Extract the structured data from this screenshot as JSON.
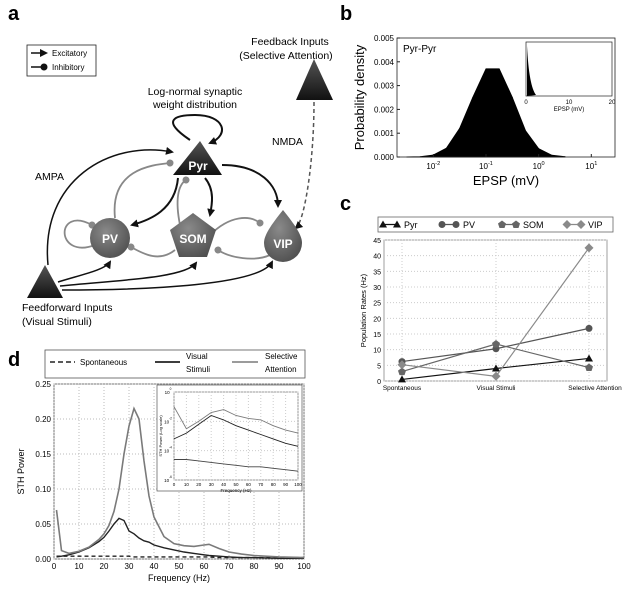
{
  "panels": {
    "a": "a",
    "b": "b",
    "c": "c",
    "d": "d"
  },
  "diagram": {
    "legend": {
      "excitatory": "Excitatory",
      "inhibitory": "Inhibitory"
    },
    "nodes": {
      "pyr": "Pyr",
      "pv": "PV",
      "som": "SOM",
      "vip": "VIP"
    },
    "feedback_line1": "Feedback Inputs",
    "feedback_line2": "(Selective Attention)",
    "feedforward_line1": "Feedforward Inputs",
    "feedforward_line2": "(Visual Stimuli)",
    "lognormal_line1": "Log-normal synaptic",
    "lognormal_line2": "weight distribution",
    "ampa": "AMPA",
    "nmda": "NMDA",
    "colors": {
      "excitatory": "#111111",
      "inhibitory": "#8a8a8a",
      "node": "#6a6a6a"
    }
  },
  "chart_data": [
    {
      "id": "b",
      "type": "histogram",
      "title": "Pyr-Pyr",
      "xlabel": "EPSP (mV)",
      "ylabel": "Probability density",
      "xscale": "log",
      "xticks": [
        "10^-2",
        "10^-1",
        "10^0",
        "10^1"
      ],
      "yticks": [
        "0.000",
        "0.001",
        "0.002",
        "0.003",
        "0.004",
        "0.005"
      ],
      "ylim": [
        0,
        0.005
      ],
      "log10_x": [
        -2.5,
        -2.25,
        -2.0,
        -1.75,
        -1.5,
        -1.25,
        -1.0,
        -0.75,
        -0.5,
        -0.25,
        0.0,
        0.25,
        0.5
      ],
      "density": [
        0.0,
        1e-05,
        8e-05,
        0.00037,
        0.0012,
        0.0025,
        0.0037,
        0.0037,
        0.0025,
        0.0011,
        0.00035,
        7e-05,
        1e-05
      ],
      "inset": {
        "xlabel": "EPSP (mV)",
        "xticks": [
          "0",
          "10",
          "20"
        ],
        "xlim": [
          0,
          20
        ]
      }
    },
    {
      "id": "c",
      "type": "line",
      "ylabel": "Population Rates (Hz)",
      "categories": [
        "Spontaneous",
        "Visual Stimuli",
        "Selective Attention"
      ],
      "yticks": [
        "0",
        "5",
        "10",
        "15",
        "20",
        "25",
        "30",
        "35",
        "40",
        "45"
      ],
      "ylim": [
        0,
        45
      ],
      "grid": true,
      "legend_position": "top",
      "series": [
        {
          "name": "Pyr",
          "marker": "triangle",
          "color": "#111111",
          "values": [
            0.5,
            4.0,
            7.2
          ]
        },
        {
          "name": "PV",
          "marker": "circle",
          "color": "#555555",
          "values": [
            6.2,
            10.3,
            16.8
          ]
        },
        {
          "name": "SOM",
          "marker": "pentagon",
          "color": "#666666",
          "values": [
            3.0,
            11.8,
            4.3
          ]
        },
        {
          "name": "VIP",
          "marker": "diamond",
          "color": "#8a8a8a",
          "values": [
            5.2,
            1.5,
            42.5
          ]
        }
      ]
    },
    {
      "id": "d",
      "type": "line",
      "xlabel": "Frequency (Hz)",
      "ylabel": "STH Power",
      "xlim": [
        0,
        100
      ],
      "ylim": [
        0,
        0.25
      ],
      "xticks": [
        "0",
        "10",
        "20",
        "30",
        "40",
        "50",
        "60",
        "70",
        "80",
        "90",
        "100"
      ],
      "yticks": [
        "0.00",
        "0.05",
        "0.10",
        "0.15",
        "0.20",
        "0.25"
      ],
      "grid": true,
      "legend_position": "top",
      "x": [
        1,
        3,
        6,
        10,
        14,
        18,
        20,
        22,
        24,
        26,
        28,
        30,
        32,
        34,
        36,
        38,
        40,
        44,
        48,
        52,
        56,
        60,
        62,
        66,
        70,
        75,
        80,
        90,
        100
      ],
      "series": [
        {
          "name": "Spontaneous",
          "style": "dashed",
          "color": "#222222",
          "values": [
            0.004,
            0.004,
            0.004,
            0.004,
            0.004,
            0.004,
            0.004,
            0.004,
            0.004,
            0.004,
            0.004,
            0.004,
            0.003,
            0.003,
            0.003,
            0.003,
            0.003,
            0.003,
            0.003,
            0.003,
            0.003,
            0.003,
            0.003,
            0.002,
            0.002,
            0.002,
            0.002,
            0.002,
            0.002
          ]
        },
        {
          "name": "Visual Stimuli",
          "style": "solid",
          "color": "#222222",
          "values": [
            0.003,
            0.004,
            0.006,
            0.01,
            0.016,
            0.025,
            0.031,
            0.04,
            0.05,
            0.058,
            0.055,
            0.04,
            0.036,
            0.03,
            0.026,
            0.024,
            0.02,
            0.016,
            0.013,
            0.01,
            0.008,
            0.006,
            0.005,
            0.004,
            0.003,
            0.002,
            0.002,
            0.001,
            0.001
          ]
        },
        {
          "name": "Selective Attention",
          "style": "solid",
          "color": "#7a7a7a",
          "values": [
            0.07,
            0.012,
            0.008,
            0.011,
            0.017,
            0.028,
            0.036,
            0.048,
            0.068,
            0.1,
            0.15,
            0.19,
            0.215,
            0.2,
            0.14,
            0.09,
            0.06,
            0.032,
            0.022,
            0.019,
            0.018,
            0.02,
            0.021,
            0.015,
            0.01,
            0.007,
            0.005,
            0.003,
            0.002
          ]
        }
      ],
      "legend_labels": {
        "spont": "Spontaneous",
        "visual_1": "Visual",
        "visual_2": "Stimuli",
        "sa_1": "Selective",
        "sa_2": "Attention"
      },
      "inset": {
        "xlabel": "Frequency (Hz)",
        "ylabel": "STH Power (Log scale)",
        "yscale": "log",
        "ylim_log10": [
          -6,
          0
        ],
        "xticks": [
          "0",
          "10",
          "20",
          "30",
          "40",
          "50",
          "60",
          "70",
          "80",
          "90",
          "100"
        ],
        "x": [
          0,
          10,
          20,
          30,
          40,
          50,
          60,
          70,
          80,
          90,
          100
        ],
        "series_log10": [
          {
            "name": "Spontaneous",
            "values": [
              -4.6,
              -4.6,
              -4.7,
              -4.8,
              -4.9,
              -5.0,
              -5.1,
              -5.1,
              -5.2,
              -5.3,
              -5.4
            ]
          },
          {
            "name": "Visual Stimuli",
            "values": [
              -3.2,
              -2.8,
              -2.2,
              -1.6,
              -1.9,
              -2.3,
              -2.6,
              -2.9,
              -3.2,
              -3.5,
              -3.7
            ]
          },
          {
            "name": "Selective Attention",
            "values": [
              -1.0,
              -2.5,
              -2.0,
              -1.4,
              -1.2,
              -1.6,
              -1.8,
              -1.9,
              -2.3,
              -2.6,
              -2.8
            ]
          }
        ]
      }
    }
  ]
}
